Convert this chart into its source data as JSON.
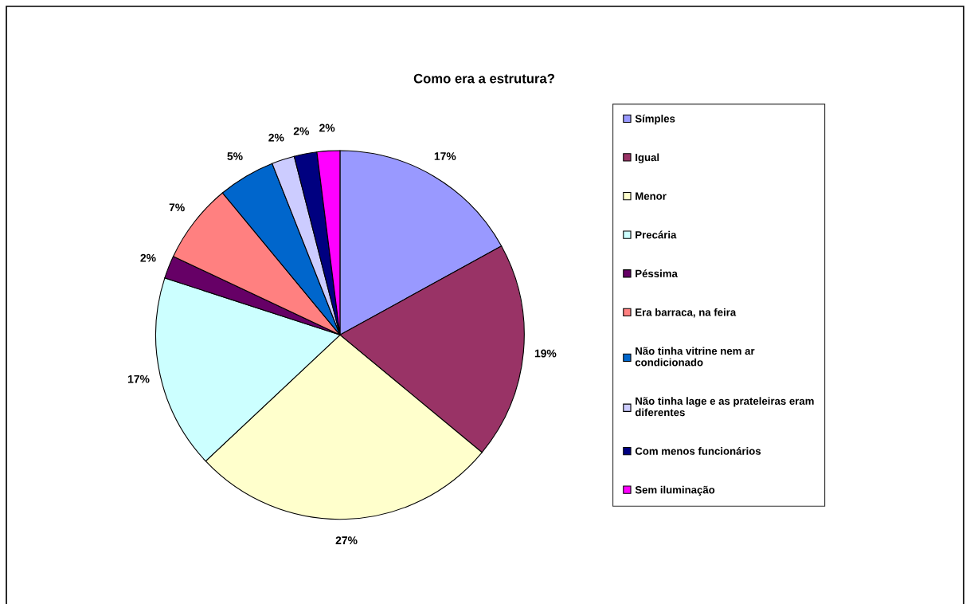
{
  "chart_data": {
    "type": "pie",
    "title": "Como era a estrutura?",
    "categories": [
      "Símples",
      "Igual",
      "Menor",
      "Precária",
      "Péssima",
      "Era barraca, na feira",
      "Não tinha vitrine nem ar condicionado",
      "Não tinha lage e as prateleiras eram diferentes",
      "Com menos funcionários",
      "Sem iluminação"
    ],
    "values": [
      17,
      19,
      27,
      17,
      2,
      7,
      5,
      2,
      2,
      2
    ],
    "value_labels": [
      "17%",
      "19%",
      "27%",
      "17%",
      "2%",
      "7%",
      "5%",
      "2%",
      "2%",
      "2%"
    ],
    "colors": [
      "#9999ff",
      "#993366",
      "#ffffcc",
      "#ccffff",
      "#660066",
      "#ff8080",
      "#0066cc",
      "#ccccff",
      "#000080",
      "#ff00ff"
    ],
    "legend": "right"
  }
}
